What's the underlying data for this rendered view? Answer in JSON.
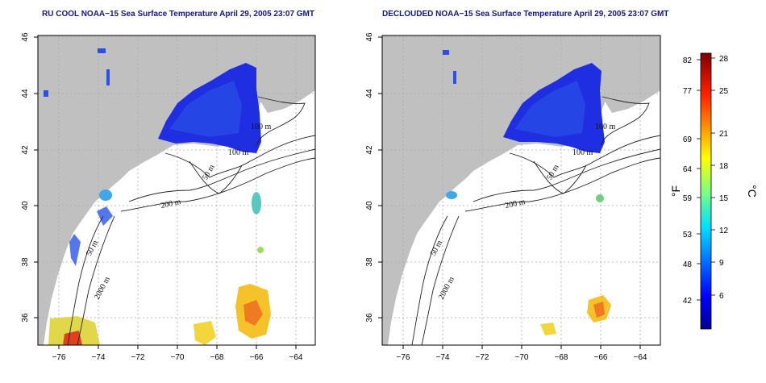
{
  "titles": {
    "left": "RU COOL NOAA−15 Sea Surface Temperature April 29, 2005 23:07 GMT",
    "right": "DECLOUDED NOAA−15 Sea Surface Temperature April 29, 2005 23:07 GMT"
  },
  "axes": {
    "x_ticks": [
      "−76",
      "−74",
      "−72",
      "−70",
      "−68",
      "−66",
      "−64"
    ],
    "y_ticks": [
      "36",
      "38",
      "40",
      "42",
      "44",
      "46"
    ]
  },
  "contour_labels": [
    "100 m",
    "100 m",
    "50 m",
    "200 m",
    "50 m",
    "2000 m"
  ],
  "colorbar": {
    "fahrenheit_ticks": [
      "82",
      "77",
      "69",
      "64",
      "59",
      "53",
      "48",
      "42"
    ],
    "celsius_ticks": [
      "28",
      "25",
      "21",
      "18",
      "15",
      "12",
      "9",
      "6"
    ],
    "unit_f": "°F",
    "unit_c": "°C"
  },
  "colors": {
    "land": "#c0c0c0",
    "title": "#14148c",
    "cold": "#1e2ee0"
  }
}
